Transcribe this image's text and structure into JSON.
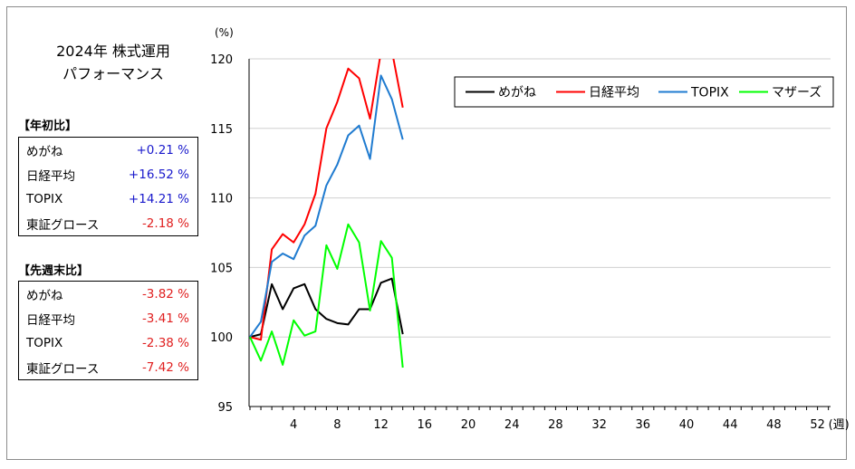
{
  "title": {
    "line1": "2024年 株式運用",
    "line2": "パフォーマンス"
  },
  "ytd": {
    "label": "【年初比】",
    "rows": [
      {
        "name": "めがね",
        "value": "+0.21 %",
        "sign": "pos"
      },
      {
        "name": "日経平均",
        "value": "+16.52 %",
        "sign": "pos"
      },
      {
        "name": "TOPIX",
        "value": "+14.21 %",
        "sign": "pos"
      },
      {
        "name": "東証グロース",
        "value": "-2.18 %",
        "sign": "neg"
      }
    ]
  },
  "wow": {
    "label": "【先週末比】",
    "rows": [
      {
        "name": "めがね",
        "value": "-3.82 %",
        "sign": "neg"
      },
      {
        "name": "日経平均",
        "value": "-3.41 %",
        "sign": "neg"
      },
      {
        "name": "TOPIX",
        "value": "-2.38 %",
        "sign": "neg"
      },
      {
        "name": "東証グロース",
        "value": "-7.42 %",
        "sign": "neg"
      }
    ]
  },
  "chart_data": {
    "type": "line",
    "ylabel": "(%)",
    "xlabel": "(週)",
    "xlim": [
      0,
      55
    ],
    "ylim": [
      95,
      120
    ],
    "xticks": [
      4,
      8,
      12,
      16,
      20,
      24,
      28,
      32,
      36,
      40,
      44,
      48,
      52
    ],
    "yticks": [
      95,
      100,
      105,
      110,
      115,
      120
    ],
    "legend_position": "top-right",
    "x": [
      0,
      1,
      2,
      3,
      4,
      5,
      6,
      7,
      8,
      9,
      10,
      11,
      12,
      13,
      14
    ],
    "series": [
      {
        "name": "めがね",
        "color": "#000000",
        "values": [
          100.0,
          100.2,
          103.8,
          102.0,
          103.5,
          103.8,
          102.0,
          101.3,
          101.0,
          100.9,
          102.0,
          102.0,
          103.9,
          104.2,
          100.2
        ]
      },
      {
        "name": "日経平均",
        "color": "#ff0000",
        "values": [
          100.0,
          99.8,
          106.3,
          107.4,
          106.8,
          108.1,
          110.3,
          115.0,
          116.9,
          119.3,
          118.6,
          115.7,
          120.5,
          120.6,
          116.5
        ]
      },
      {
        "name": "TOPIX",
        "color": "#1f7bd0",
        "values": [
          100.0,
          101.1,
          105.4,
          106.0,
          105.6,
          107.3,
          108.0,
          110.9,
          112.4,
          114.5,
          115.2,
          112.8,
          118.8,
          117.1,
          114.2
        ]
      },
      {
        "name": "マザーズ",
        "color": "#00ff00",
        "values": [
          100.0,
          98.3,
          100.4,
          98.0,
          101.2,
          100.1,
          100.4,
          106.6,
          104.9,
          108.1,
          106.8,
          101.9,
          106.9,
          105.7,
          97.8
        ]
      }
    ]
  }
}
